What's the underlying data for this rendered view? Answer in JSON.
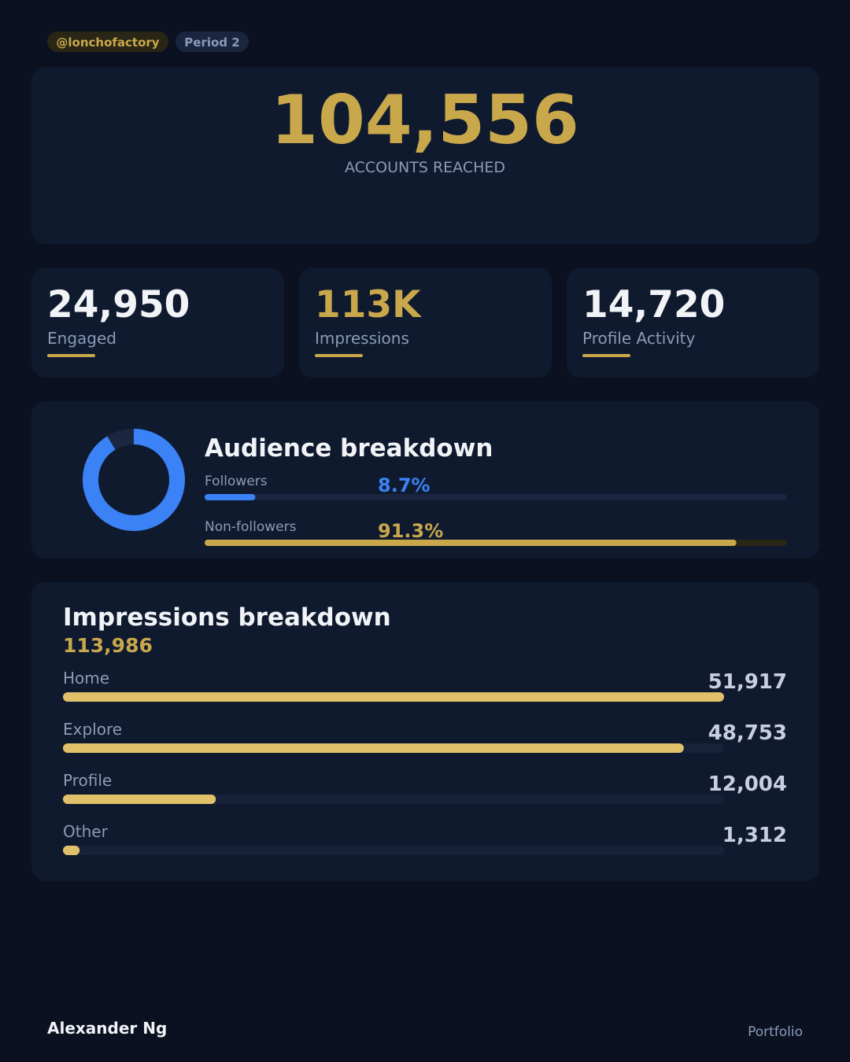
{
  "header": {
    "handle": "@lonchofactory",
    "period": "Period 2"
  },
  "hero": {
    "value": "104,556",
    "label": "ACCOUNTS REACHED"
  },
  "stats": [
    {
      "value": "24,950",
      "label": "Engaged",
      "color": "#f1f3f7"
    },
    {
      "value": "113K",
      "label": "Impressions",
      "color": "#c9a84c"
    },
    {
      "value": "14,720",
      "label": "Profile Activity",
      "color": "#f1f3f7"
    }
  ],
  "audience": {
    "title": "Audience breakdown",
    "segments": [
      {
        "name": "Followers",
        "value": 8.7,
        "value_label": "8.7%",
        "color": "#3b82f6",
        "track": "#1a2540",
        "donut_color": "#1b2742"
      },
      {
        "name": "Non-followers",
        "value": 91.3,
        "value_label": "91.3%",
        "color": "#c9a84c",
        "track": "#2a2615",
        "donut_color": "#3b82f6"
      }
    ]
  },
  "impressions": {
    "title": "Impressions breakdown",
    "total": 113986,
    "total_label": "113,986",
    "categories": [
      "Home",
      "Explore",
      "Profile",
      "Other"
    ],
    "values": [
      51917,
      48753,
      12004,
      1312
    ],
    "value_labels": [
      "51,917",
      "48,753",
      "12,004",
      "1,312"
    ],
    "color": "#e0c068"
  },
  "footer": {
    "name": "Alexander Ng",
    "link": "Portfolio"
  }
}
